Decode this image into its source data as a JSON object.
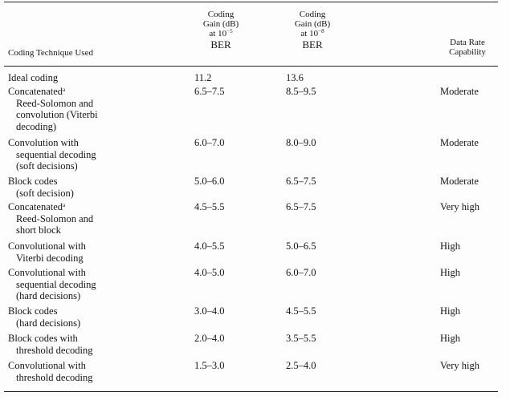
{
  "table": {
    "headers": {
      "technique": "Coding Technique Used",
      "gain5": {
        "line1": "Coding",
        "line2": "Gain (dB)",
        "line3_prefix": "at 10",
        "exponent": "−5",
        "line4": "BER"
      },
      "gain8": {
        "line1": "Coding",
        "line2": "Gain (dB)",
        "line3_prefix": "at 10",
        "exponent": "−8",
        "line4": "BER"
      },
      "rate": {
        "line1": "Data Rate",
        "line2": "Capability"
      }
    },
    "rows": [
      {
        "technique": {
          "line1": "Ideal coding"
        },
        "gain5": "11.2",
        "gain8": "13.6",
        "rate": ""
      },
      {
        "technique": {
          "line1": "Concatenated",
          "footnote": "a",
          "line2": "Reed-Solomon and",
          "line3": "convolution (Viterbi",
          "line4": "decoding)"
        },
        "gain5": "6.5–7.5",
        "gain8": "8.5–9.5",
        "rate": "Moderate"
      },
      {
        "technique": {
          "line1": "Convolution with",
          "line2": "sequential decoding",
          "line3": "(soft decisions)"
        },
        "gain5": "6.0–7.0",
        "gain8": "8.0–9.0",
        "rate": "Moderate"
      },
      {
        "technique": {
          "line1": "Block codes",
          "line2": "(soft decision)"
        },
        "gain5": "5.0–6.0",
        "gain8": "6.5–7.5",
        "rate": "Moderate"
      },
      {
        "technique": {
          "line1": "Concatenated",
          "footnote": "a",
          "line2": "Reed-Solomon and",
          "line3": "short block"
        },
        "gain5": "4.5–5.5",
        "gain8": "6.5–7.5",
        "rate": "Very high"
      },
      {
        "technique": {
          "line1": "Convolutional with",
          "line2": "Viterbi decoding"
        },
        "gain5": "4.0–5.5",
        "gain8": "5.0–6.5",
        "rate": "High"
      },
      {
        "technique": {
          "line1": "Convolutional with",
          "line2": "sequential decoding",
          "line3": "(hard decisions)"
        },
        "gain5": "4.0–5.0",
        "gain8": "6.0–7.0",
        "rate": "High"
      },
      {
        "technique": {
          "line1": "Block codes",
          "line2": "(hard decisions)"
        },
        "gain5": "3.0–4.0",
        "gain8": "4.5–5.5",
        "rate": "High"
      },
      {
        "technique": {
          "line1": "Block codes with",
          "line2": "threshold decoding"
        },
        "gain5": "2.0–4.0",
        "gain8": "3.5–5.5",
        "rate": "High"
      },
      {
        "technique": {
          "line1": "Convolutional with",
          "line2": "threshold decoding"
        },
        "gain5": "1.5–3.0",
        "gain8": "2.5–4.0",
        "rate": "Very high"
      }
    ]
  }
}
